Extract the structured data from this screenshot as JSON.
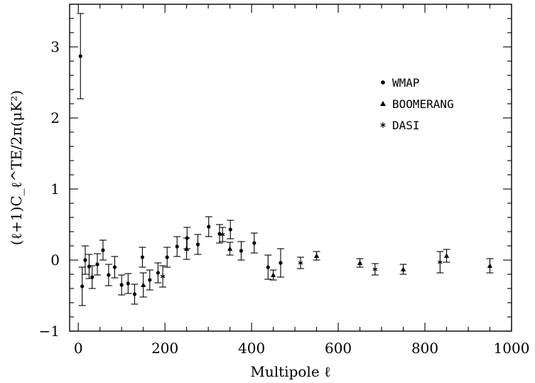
{
  "chart_data": {
    "type": "scatter",
    "xlabel": "Multipole ℓ",
    "ylabel": "(ℓ+1)C_ℓ^TE/2π(μK²)",
    "xlim": [
      -20,
      1000
    ],
    "ylim": [
      -1,
      3.6
    ],
    "x_ticks": [
      "0",
      "200",
      "400",
      "600",
      "800",
      "1000"
    ],
    "y_ticks": [
      "−1",
      "0",
      "1",
      "2",
      "3"
    ],
    "legend_position": "upper-right",
    "series": [
      {
        "name": "WMAP",
        "marker": "circle",
        "points": [
          {
            "x": 5,
            "y": 2.87,
            "err": 0.6
          },
          {
            "x": 9,
            "y": -0.37,
            "err": 0.27
          },
          {
            "x": 16,
            "y": 0.0,
            "err": 0.2
          },
          {
            "x": 25,
            "y": -0.09,
            "err": 0.17
          },
          {
            "x": 32,
            "y": -0.24,
            "err": 0.16
          },
          {
            "x": 44,
            "y": -0.06,
            "err": 0.15
          },
          {
            "x": 57,
            "y": 0.14,
            "err": 0.14
          },
          {
            "x": 70,
            "y": -0.21,
            "err": 0.15
          },
          {
            "x": 84,
            "y": -0.1,
            "err": 0.15
          },
          {
            "x": 100,
            "y": -0.35,
            "err": 0.14
          },
          {
            "x": 115,
            "y": -0.33,
            "err": 0.14
          },
          {
            "x": 130,
            "y": -0.48,
            "err": 0.14
          },
          {
            "x": 148,
            "y": 0.04,
            "err": 0.14
          },
          {
            "x": 165,
            "y": -0.28,
            "err": 0.14
          },
          {
            "x": 184,
            "y": -0.18,
            "err": 0.14
          },
          {
            "x": 205,
            "y": 0.04,
            "err": 0.14
          },
          {
            "x": 228,
            "y": 0.19,
            "err": 0.14
          },
          {
            "x": 251,
            "y": 0.31,
            "err": 0.15
          },
          {
            "x": 276,
            "y": 0.22,
            "err": 0.14
          },
          {
            "x": 301,
            "y": 0.47,
            "err": 0.14
          },
          {
            "x": 326,
            "y": 0.37,
            "err": 0.13
          },
          {
            "x": 351,
            "y": 0.43,
            "err": 0.13
          },
          {
            "x": 376,
            "y": 0.13,
            "err": 0.13
          },
          {
            "x": 406,
            "y": 0.24,
            "err": 0.14
          },
          {
            "x": 438,
            "y": -0.1,
            "err": 0.17
          },
          {
            "x": 467,
            "y": -0.04,
            "err": 0.2
          }
        ]
      },
      {
        "name": "BOOMERANG",
        "marker": "triangle",
        "points": [
          {
            "x": 150,
            "y": -0.35,
            "err": 0.17
          },
          {
            "x": 250,
            "y": 0.16,
            "err": 0.15
          },
          {
            "x": 350,
            "y": 0.16,
            "err": 0.09
          },
          {
            "x": 450,
            "y": -0.21,
            "err": 0.07
          },
          {
            "x": 550,
            "y": 0.06,
            "err": 0.06
          },
          {
            "x": 650,
            "y": -0.04,
            "err": 0.06
          },
          {
            "x": 750,
            "y": -0.13,
            "err": 0.07
          },
          {
            "x": 850,
            "y": 0.06,
            "err": 0.09
          },
          {
            "x": 950,
            "y": -0.08,
            "err": 0.1
          }
        ]
      },
      {
        "name": "DASI",
        "marker": "asterisk",
        "points": [
          {
            "x": 195,
            "y": -0.23,
            "err": 0.15
          },
          {
            "x": 333,
            "y": 0.36,
            "err": 0.1
          },
          {
            "x": 513,
            "y": -0.04,
            "err": 0.08
          },
          {
            "x": 685,
            "y": -0.13,
            "err": 0.08
          },
          {
            "x": 835,
            "y": -0.03,
            "err": 0.15
          }
        ]
      }
    ]
  }
}
